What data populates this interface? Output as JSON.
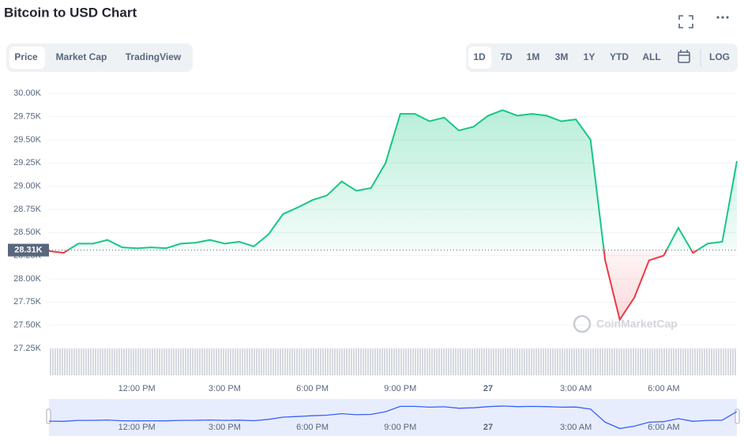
{
  "chart_data": {
    "type": "line",
    "title": "Bitcoin to USD Chart",
    "categories": [
      null,
      null,
      null,
      null,
      null,
      null,
      "12:00 PM",
      null,
      null,
      null,
      null,
      null,
      "3:00 PM",
      null,
      null,
      null,
      null,
      null,
      "6:00 PM",
      null,
      null,
      null,
      null,
      null,
      "9:00 PM",
      null,
      null,
      null,
      null,
      null,
      "27",
      null,
      null,
      null,
      null,
      null,
      "3:00 AM",
      null,
      null,
      null,
      null,
      null,
      "6:00 AM",
      null,
      null,
      null,
      null,
      null
    ],
    "values": [
      28300,
      28280,
      28380,
      28380,
      28420,
      28340,
      28330,
      28340,
      28330,
      28380,
      28390,
      28420,
      28380,
      28400,
      28350,
      28480,
      28700,
      28770,
      28850,
      28900,
      29050,
      28950,
      28980,
      29250,
      29780,
      29780,
      29700,
      29740,
      29600,
      29640,
      29760,
      29820,
      29760,
      29780,
      29760,
      29700,
      29720,
      29500,
      28200,
      27560,
      27800,
      28200,
      28250,
      28550,
      28280,
      28380,
      28400,
      29270
    ],
    "baseline": {
      "value": 28310,
      "label": "28.31K"
    },
    "up_color": "#16c784",
    "down_color": "#ea3943",
    "ylim": [
      26960,
      30130
    ],
    "yticks": [
      {
        "value": 27250,
        "label": "27.25K"
      },
      {
        "value": 27500,
        "label": "27.50K"
      },
      {
        "value": 27750,
        "label": "27.75K"
      },
      {
        "value": 28000,
        "label": "28.00K"
      },
      {
        "value": 28250,
        "label": "28.25K"
      },
      {
        "value": 28500,
        "label": "28.50K"
      },
      {
        "value": 28750,
        "label": "28.75K"
      },
      {
        "value": 29000,
        "label": "29.00K"
      },
      {
        "value": 29250,
        "label": "29.25K"
      },
      {
        "value": 29500,
        "label": "29.50K"
      },
      {
        "value": 29750,
        "label": "29.75K"
      },
      {
        "value": 30000,
        "label": "30.00K"
      }
    ],
    "grid": true,
    "watermark": "CoinMarketCap"
  },
  "tabs": [
    "Price",
    "Market Cap",
    "TradingView"
  ],
  "ranges": [
    "1D",
    "7D",
    "1M",
    "3M",
    "1Y",
    "YTD",
    "ALL"
  ],
  "log_button": "LOG"
}
